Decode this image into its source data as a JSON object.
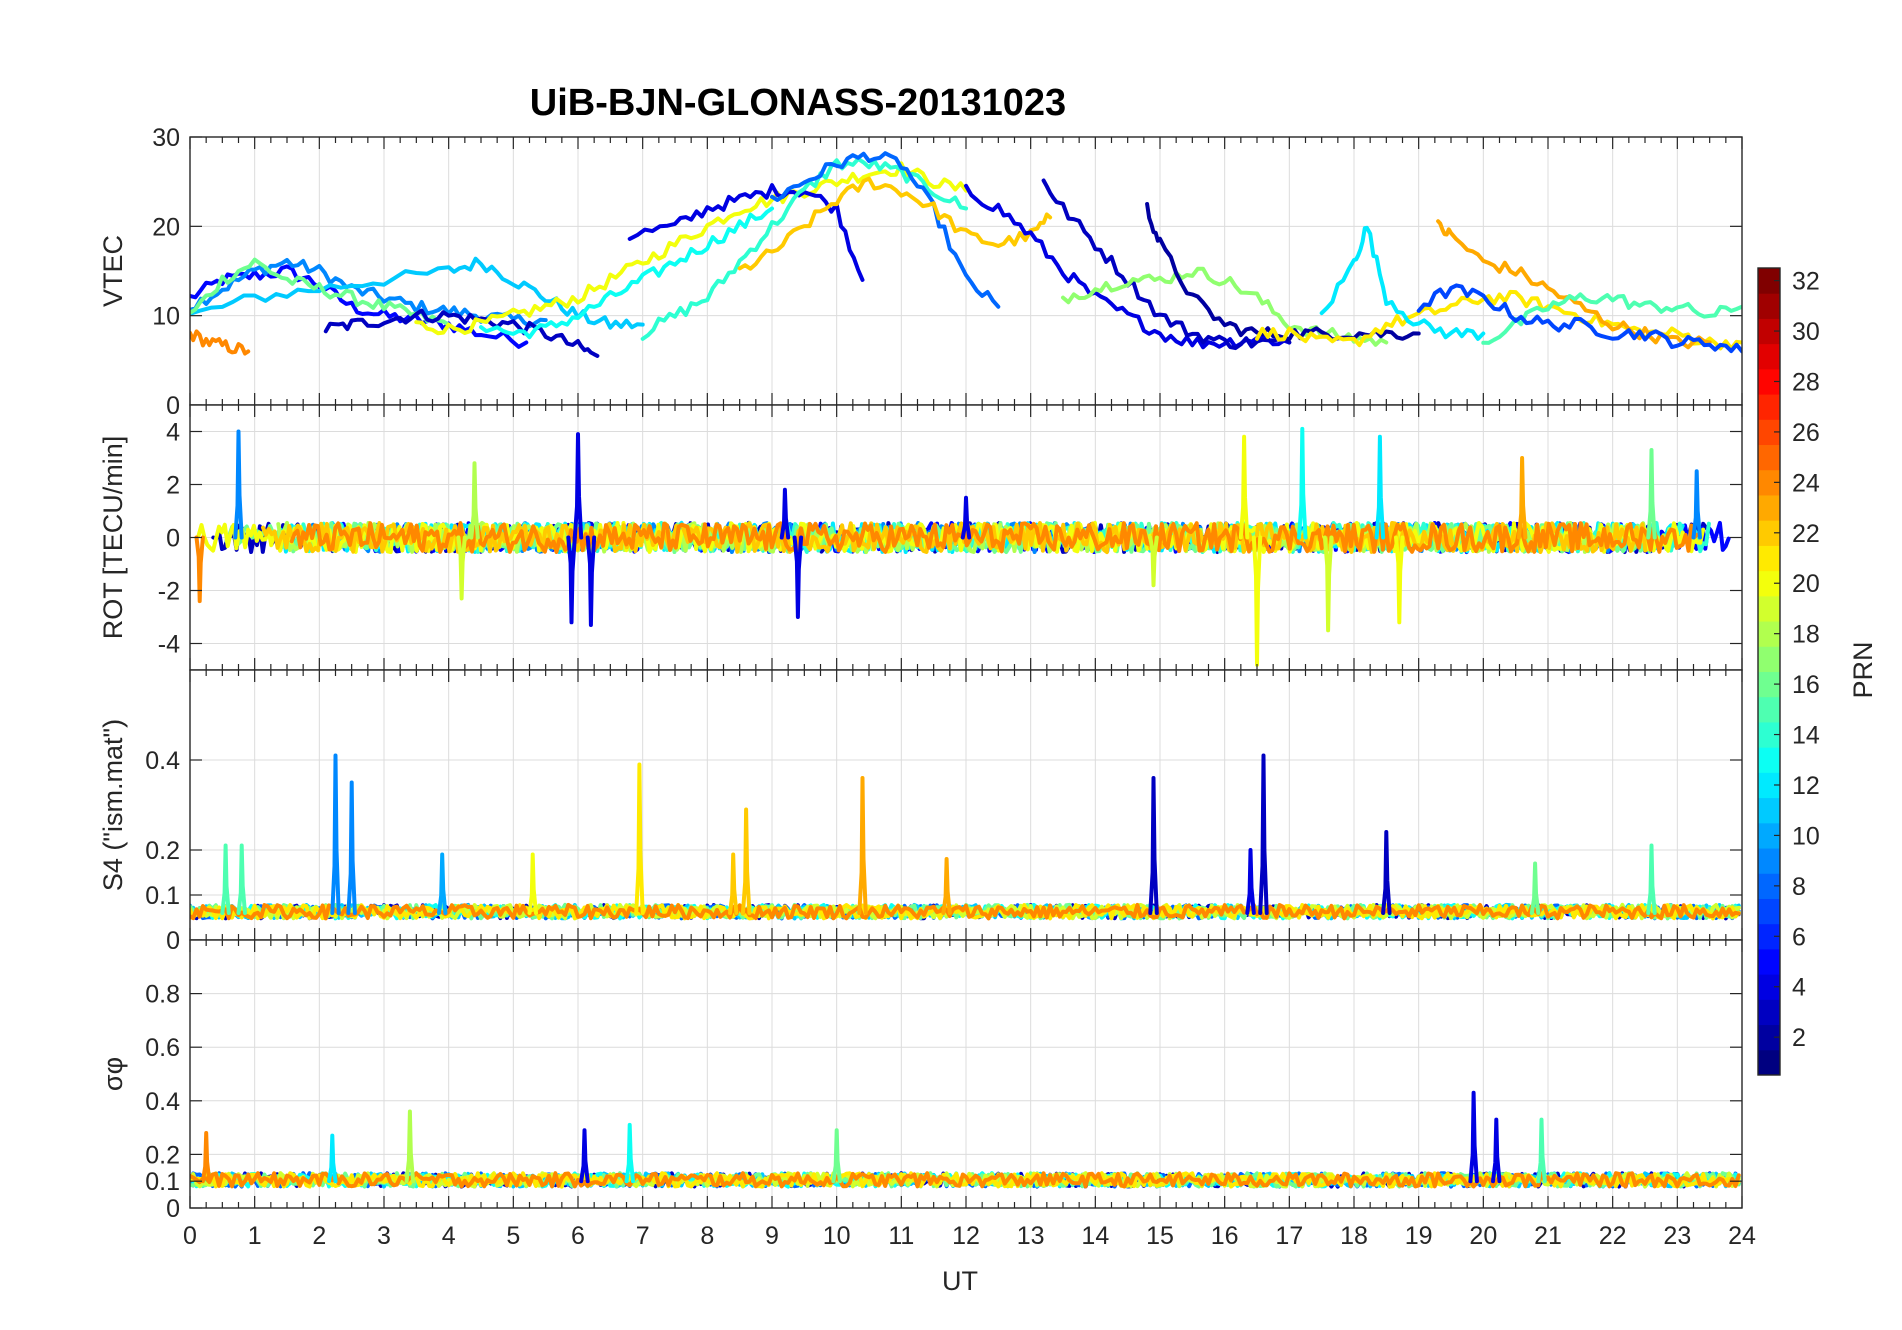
{
  "chart_data": {
    "type": "line",
    "title": "UiB-BJN-GLONASS-20131023",
    "xlabel": "UT",
    "xlim": [
      0,
      24
    ],
    "xticks": [
      0,
      1,
      2,
      3,
      4,
      5,
      6,
      7,
      8,
      9,
      10,
      11,
      12,
      13,
      14,
      15,
      16,
      17,
      18,
      19,
      20,
      21,
      22,
      23,
      24
    ],
    "grid": true,
    "panels": [
      {
        "ylabel": "VTEC",
        "ylim": [
          0,
          30
        ],
        "yticks": [
          0,
          10,
          20,
          30
        ],
        "series": [
          {
            "prn": 5,
            "x": [
              0,
              0.5,
              1,
              1.5,
              2,
              2.5,
              3,
              3.5,
              4,
              4.5,
              5.2
            ],
            "y": [
              12,
              14,
              14.5,
              15,
              13.5,
              11,
              10,
              9.5,
              9,
              8,
              7
            ]
          },
          {
            "prn": 9,
            "x": [
              0,
              0.5,
              1,
              1.5,
              2,
              2.5,
              3,
              3.5,
              4,
              4.5,
              5,
              5.5
            ],
            "y": [
              11,
              13,
              15,
              16,
              15,
              13,
              12,
              11,
              10.5,
              10,
              9.5,
              9.5
            ]
          },
          {
            "prn": 11,
            "x": [
              0,
              1,
              2,
              3,
              4,
              4.5,
              5,
              5.5,
              6,
              6.5,
              7
            ],
            "y": [
              10,
              12,
              13,
              14,
              15,
              16,
              14,
              12,
              10,
              9,
              9
            ]
          },
          {
            "prn": 16,
            "x": [
              0,
              0.5,
              1,
              1.5,
              2,
              2.5,
              3,
              3.5,
              4
            ],
            "y": [
              10,
              14,
              16,
              14,
              13,
              12,
              11,
              10,
              9
            ]
          },
          {
            "prn": 24,
            "x": [
              0,
              0.3,
              0.6,
              0.9
            ],
            "y": [
              8,
              7,
              6.5,
              6
            ]
          },
          {
            "prn": 3,
            "x": [
              2.1,
              2.5,
              3,
              3.5,
              4,
              4.5,
              5,
              5.5,
              6,
              6.3
            ],
            "y": [
              8.5,
              9,
              9.5,
              10,
              10,
              9.5,
              9,
              8,
              6.5,
              5.5
            ]
          },
          {
            "prn": 20,
            "x": [
              3.5,
              4,
              4.5,
              5,
              5.5,
              6,
              6.5,
              7,
              7.5,
              8,
              8.5,
              9,
              9.5,
              10,
              10.5,
              11,
              11.5,
              12
            ],
            "y": [
              9,
              8.5,
              9,
              10,
              11,
              12,
              14,
              16,
              18,
              20,
              22,
              23,
              24,
              25,
              26,
              26.5,
              25,
              24
            ]
          },
          {
            "prn": 13,
            "x": [
              4.5,
              5,
              5.5,
              6,
              6.5,
              7,
              7.5,
              8,
              8.5,
              9
            ],
            "y": [
              9,
              8,
              8.5,
              10,
              12,
              14,
              16,
              18,
              20,
              22
            ]
          },
          {
            "prn": 4,
            "x": [
              6.8,
              7.5,
              8,
              8.5,
              9,
              9.5,
              10,
              10.4
            ],
            "y": [
              19,
              20,
              22,
              23,
              24,
              24,
              22,
              14
            ]
          },
          {
            "prn": 14,
            "x": [
              7,
              7.5,
              8,
              8.5,
              9,
              9.5,
              10,
              10.5,
              11,
              11.5,
              12
            ],
            "y": [
              8,
              10,
              12,
              16,
              20,
              24,
              27,
              27,
              26,
              24,
              22
            ]
          },
          {
            "prn": 8,
            "x": [
              9,
              9.5,
              10,
              10.5,
              11,
              11.5,
              12,
              12.5
            ],
            "y": [
              23,
              25,
              27,
              28,
              27,
              22,
              14,
              11
            ]
          },
          {
            "prn": 22,
            "x": [
              8.5,
              9,
              9.5,
              10,
              10.5,
              11,
              11.5,
              12,
              12.5,
              13,
              13.3
            ],
            "y": [
              15,
              17,
              20,
              23,
              25,
              24,
              22,
              19,
              18,
              19,
              21
            ]
          },
          {
            "prn": 4,
            "x": [
              12,
              12.5,
              13,
              13.5,
              14,
              14.5,
              15,
              15.5,
              16,
              16.5,
              17
            ],
            "y": [
              24,
              22,
              19,
              15,
              12,
              10,
              8,
              7,
              7,
              7.5,
              7
            ]
          },
          {
            "prn": 3,
            "x": [
              13.2,
              13.5,
              14,
              14.5,
              15,
              15.5,
              16,
              16.5,
              17
            ],
            "y": [
              25,
              22,
              18,
              14,
              10,
              8,
              7,
              7,
              7
            ]
          },
          {
            "prn": 17,
            "x": [
              13.5,
              14,
              14.5,
              15,
              15.5,
              16,
              16.5,
              17,
              17.5,
              18,
              18.5
            ],
            "y": [
              12,
              13,
              14,
              14,
              15,
              14,
              12,
              9,
              8,
              7.5,
              7
            ]
          },
          {
            "prn": 2,
            "x": [
              14.8,
              15,
              15.5,
              16,
              16.5,
              17,
              17.5,
              18,
              18.5,
              19
            ],
            "y": [
              22,
              18,
              12,
              9,
              8,
              8,
              8,
              8,
              8,
              8
            ]
          },
          {
            "prn": 21,
            "x": [
              16.5,
              17,
              17.5,
              18,
              18.5,
              19,
              19.5,
              20,
              20.5,
              21,
              21.5,
              22,
              22.5,
              23,
              23.5,
              24
            ],
            "y": [
              8,
              8,
              7,
              7,
              9,
              10,
              11,
              12,
              12,
              11,
              10,
              9,
              8,
              8,
              7,
              7
            ]
          },
          {
            "prn": 23,
            "x": [
              19.3,
              19.5,
              20,
              20.5,
              21,
              21.5,
              22,
              22.5,
              23,
              23.5
            ],
            "y": [
              20,
              19,
              16,
              15,
              13,
              11,
              9,
              8,
              7,
              7
            ]
          },
          {
            "prn": 12,
            "x": [
              17.5,
              18,
              18.2,
              18.5,
              19,
              19.5,
              20
            ],
            "y": [
              10,
              16,
              20,
              12,
              9,
              8,
              8
            ]
          },
          {
            "prn": 15,
            "x": [
              20,
              20.5,
              21,
              21.5,
              22,
              22.5,
              23,
              23.5,
              24
            ],
            "y": [
              7,
              9,
              11,
              12,
              12,
              11,
              11,
              10,
              11
            ]
          },
          {
            "prn": 7,
            "x": [
              19,
              19.5,
              20,
              20.5,
              21,
              21.5,
              22,
              22.5,
              23,
              23.5,
              24
            ],
            "y": [
              11,
              13,
              12,
              10,
              9,
              9,
              8,
              8,
              7,
              7,
              6
            ]
          }
        ]
      },
      {
        "ylabel": "ROT [TECU/min]",
        "ylim": [
          -5,
          5
        ],
        "yticks": [
          -4,
          -2,
          0,
          2,
          4
        ],
        "noise": true,
        "spikes": [
          {
            "x": 0.75,
            "y": 4,
            "prn": 9
          },
          {
            "x": 6.0,
            "y": 3.9,
            "prn": 4
          },
          {
            "x": 5.9,
            "y": -3.2,
            "prn": 4
          },
          {
            "x": 6.2,
            "y": -3.3,
            "prn": 4
          },
          {
            "x": 9.2,
            "y": 1.8,
            "prn": 4
          },
          {
            "x": 9.4,
            "y": -3.0,
            "prn": 4
          },
          {
            "x": 4.4,
            "y": 2.8,
            "prn": 18
          },
          {
            "x": 4.2,
            "y": -2.3,
            "prn": 19
          },
          {
            "x": 16.5,
            "y": -4.8,
            "prn": 20
          },
          {
            "x": 16.3,
            "y": 3.8,
            "prn": 20
          },
          {
            "x": 17.2,
            "y": 4.1,
            "prn": 13
          },
          {
            "x": 17.6,
            "y": -3.5,
            "prn": 19
          },
          {
            "x": 18.4,
            "y": 3.8,
            "prn": 12
          },
          {
            "x": 18.7,
            "y": -3.2,
            "prn": 20
          },
          {
            "x": 0.15,
            "y": -2.4,
            "prn": 24
          },
          {
            "x": 22.6,
            "y": 3.3,
            "prn": 16
          },
          {
            "x": 23.3,
            "y": 2.5,
            "prn": 9
          },
          {
            "x": 12.0,
            "y": 1.5,
            "prn": 4
          },
          {
            "x": 14.9,
            "y": -1.8,
            "prn": 19
          },
          {
            "x": 20.6,
            "y": 3.0,
            "prn": 23
          }
        ]
      },
      {
        "ylabel": "S4 (\"ism.mat\")",
        "ylim": [
          0,
          0.6
        ],
        "yticks": [
          0,
          0.1,
          0.2,
          0.4
        ],
        "ytickLabels": [
          "0",
          "0.1",
          "0.2",
          "0.4"
        ],
        "baseline": 0.06,
        "spikes": [
          {
            "x": 2.25,
            "y": 0.41,
            "prn": 9
          },
          {
            "x": 2.5,
            "y": 0.35,
            "prn": 9
          },
          {
            "x": 0.55,
            "y": 0.21,
            "prn": 15
          },
          {
            "x": 0.8,
            "y": 0.21,
            "prn": 15
          },
          {
            "x": 3.9,
            "y": 0.19,
            "prn": 10
          },
          {
            "x": 5.3,
            "y": 0.19,
            "prn": 20
          },
          {
            "x": 6.95,
            "y": 0.39,
            "prn": 21
          },
          {
            "x": 8.6,
            "y": 0.29,
            "prn": 22
          },
          {
            "x": 10.4,
            "y": 0.36,
            "prn": 23
          },
          {
            "x": 8.4,
            "y": 0.19,
            "prn": 22
          },
          {
            "x": 14.9,
            "y": 0.36,
            "prn": 3
          },
          {
            "x": 16.6,
            "y": 0.41,
            "prn": 3
          },
          {
            "x": 16.4,
            "y": 0.2,
            "prn": 4
          },
          {
            "x": 18.5,
            "y": 0.24,
            "prn": 3
          },
          {
            "x": 22.6,
            "y": 0.21,
            "prn": 15
          },
          {
            "x": 11.7,
            "y": 0.18,
            "prn": 23
          },
          {
            "x": 20.8,
            "y": 0.17,
            "prn": 16
          }
        ]
      },
      {
        "ylabel": "σφ",
        "ylim": [
          0,
          1
        ],
        "yticks": [
          0,
          0.1,
          0.2,
          0.4,
          0.6,
          0.8
        ],
        "ytickLabels": [
          "0",
          "0.1",
          "0.2",
          "0.4",
          "0.6",
          "0.8"
        ],
        "baseline": 0.1,
        "spikes": [
          {
            "x": 3.4,
            "y": 0.36,
            "prn": 18
          },
          {
            "x": 6.1,
            "y": 0.29,
            "prn": 4
          },
          {
            "x": 6.8,
            "y": 0.31,
            "prn": 13
          },
          {
            "x": 0.25,
            "y": 0.28,
            "prn": 24
          },
          {
            "x": 19.85,
            "y": 0.43,
            "prn": 4
          },
          {
            "x": 20.2,
            "y": 0.33,
            "prn": 4
          },
          {
            "x": 20.9,
            "y": 0.33,
            "prn": 15
          },
          {
            "x": 10.0,
            "y": 0.29,
            "prn": 16
          },
          {
            "x": 2.2,
            "y": 0.27,
            "prn": 12
          }
        ]
      }
    ],
    "colorbar": {
      "label": "PRN",
      "colormap": "jet",
      "range": [
        1,
        32
      ],
      "ticks": [
        2,
        4,
        6,
        8,
        10,
        12,
        14,
        16,
        18,
        20,
        22,
        24,
        26,
        28,
        30,
        32
      ]
    }
  }
}
